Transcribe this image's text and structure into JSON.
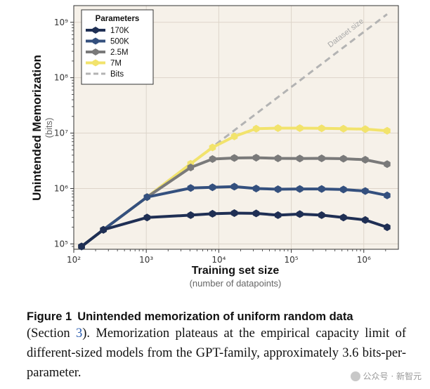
{
  "chart_data": {
    "type": "line",
    "ylabel": "Unintended Memorization",
    "ylabel_sub": "(bits)",
    "xlabel": "Training set size",
    "xlabel_sub": "(number of datapoints)",
    "xscale": "log",
    "yscale": "log",
    "xlim": [
      100,
      3000000
    ],
    "ylim": [
      80000,
      2000000000
    ],
    "x_ticks": [
      {
        "v": 100,
        "label": "10²"
      },
      {
        "v": 1000,
        "label": "10³"
      },
      {
        "v": 10000,
        "label": "10⁴"
      },
      {
        "v": 100000,
        "label": "10⁵"
      },
      {
        "v": 1000000,
        "label": "10⁶"
      }
    ],
    "y_ticks": [
      {
        "v": 100000,
        "label": "10⁵"
      },
      {
        "v": 1000000,
        "label": "10⁶"
      },
      {
        "v": 10000000,
        "label": "10⁷"
      },
      {
        "v": 100000000,
        "label": "10⁸"
      },
      {
        "v": 1000000000,
        "label": "10⁹"
      }
    ],
    "grid": true,
    "legend_title": "Parameters",
    "legend_position": "top-left",
    "x": [
      128,
      256,
      1024,
      4096,
      8192,
      16384,
      32768,
      65536,
      131072,
      262144,
      524288,
      1048576,
      2097152
    ],
    "series": [
      {
        "name": "170K",
        "color": "#1f2f54",
        "values": [
          90000,
          180000,
          300000,
          330000,
          350000,
          360000,
          355000,
          330000,
          345000,
          330000,
          300000,
          270000,
          200000
        ]
      },
      {
        "name": "500K",
        "color": "#34507e",
        "values": [
          90000,
          180000,
          700000,
          1020000,
          1050000,
          1080000,
          1000000,
          970000,
          980000,
          980000,
          960000,
          900000,
          750000
        ]
      },
      {
        "name": "2.5M",
        "color": "#7a7a7a",
        "values": [
          90000,
          180000,
          700000,
          2400000,
          3400000,
          3550000,
          3600000,
          3500000,
          3480000,
          3500000,
          3450000,
          3300000,
          2750000
        ]
      },
      {
        "name": "7M",
        "color": "#f2e36c",
        "values": [
          90000,
          180000,
          700000,
          2800000,
          5500000,
          8700000,
          12000000,
          12300000,
          12300000,
          12200000,
          12000000,
          11800000,
          11000000
        ]
      }
    ],
    "bits_line": {
      "name": "Bits",
      "color": "#b3b3b3",
      "x": [
        128,
        2097152
      ],
      "y": [
        90000,
        1400000000
      ]
    },
    "annotation": "Dataset size"
  },
  "caption": {
    "figure_label": "Figure 1",
    "title": "Unintended memorization of uniform random data",
    "body_pre": "(Section ",
    "ref": "3",
    "body_post": ").  Memorization plateaus at the empirical capacity limit of different-sized models from the GPT-family, approximately 3.6 bits-per-parameter."
  },
  "watermark": "公众号 · 新智元"
}
